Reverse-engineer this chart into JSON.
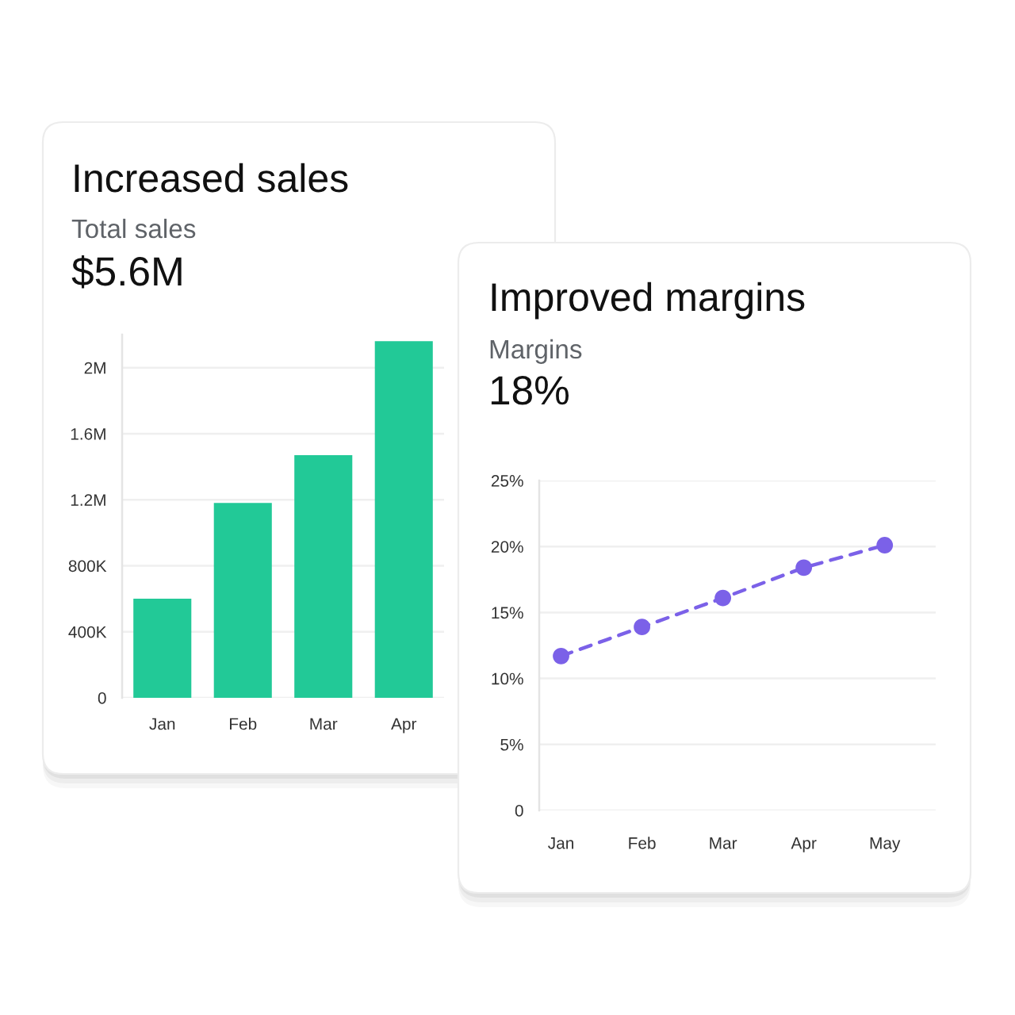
{
  "chart_data": [
    {
      "type": "bar",
      "title": "Increased sales",
      "subtitle": "Total sales",
      "annotations": [
        "$5.6M"
      ],
      "categories": [
        "Jan",
        "Feb",
        "Mar",
        "Apr"
      ],
      "values": [
        600000,
        1180000,
        1470000,
        2160000
      ],
      "color": "#22c997",
      "ylim": [
        0,
        2200000
      ],
      "yticks": [
        0,
        {
          "value": 400000,
          "label": "400K"
        },
        {
          "value": 800000,
          "label": "800K"
        },
        {
          "value": 1200000,
          "label": "1.2M"
        },
        {
          "value": 1600000,
          "label": "1.6M"
        },
        {
          "value": 2000000,
          "label": "2M"
        }
      ],
      "grid": "y"
    },
    {
      "type": "line",
      "title": "Improved margins",
      "subtitle": "Margins",
      "annotations": [
        "18%"
      ],
      "categories": [
        "Jan",
        "Feb",
        "Mar",
        "Apr",
        "May"
      ],
      "values": [
        11.7,
        13.9,
        16.1,
        18.4,
        20.1
      ],
      "color": "#7b61e8",
      "ylim": [
        0,
        25
      ],
      "yticks": [
        0,
        {
          "value": 5,
          "label": "5%"
        },
        {
          "value": 10,
          "label": "10%"
        },
        {
          "value": 15,
          "label": "15%"
        },
        {
          "value": 20,
          "label": "20%"
        },
        {
          "value": 25,
          "label": "25%"
        }
      ],
      "grid": "y",
      "marker": "circle",
      "line_style": "dashed"
    }
  ]
}
